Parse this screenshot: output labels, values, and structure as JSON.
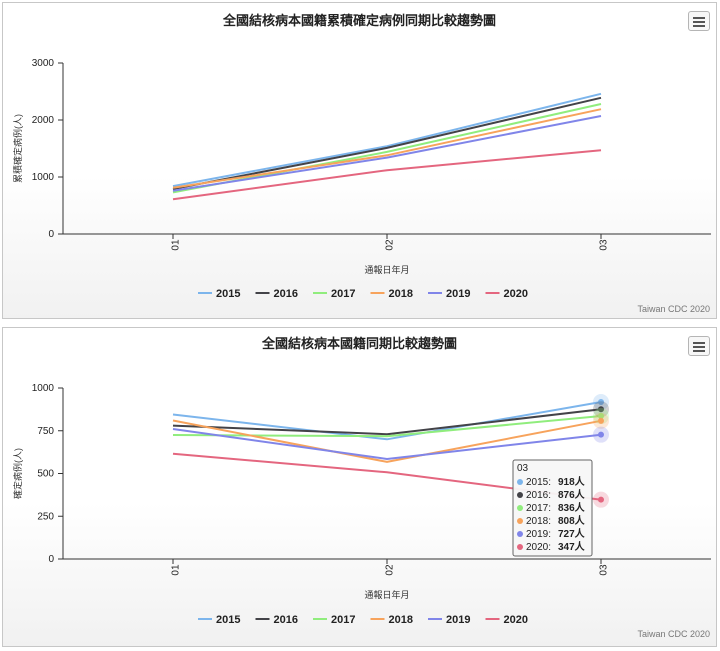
{
  "colors": {
    "2015": "#7cb5ec",
    "2016": "#434348",
    "2017": "#90ed7d",
    "2018": "#f7a35c",
    "2019": "#8085e9",
    "2020": "#e4667f"
  },
  "credit": "Taiwan CDC 2020",
  "chart_data": [
    {
      "type": "line",
      "title": "全國結核病本國籍累積確定病例同期比較趨勢圖",
      "xlabel": "通報日年月",
      "ylabel": "累積確定病例(人)",
      "categories": [
        "01",
        "02",
        "03"
      ],
      "ylim": [
        0,
        3000
      ],
      "yticks": [
        "0",
        "1000",
        "2000",
        "3000"
      ],
      "grid": false,
      "legend": "bottom-center",
      "series": [
        {
          "name": "2015",
          "values": [
            840,
            1540,
            2460
          ]
        },
        {
          "name": "2016",
          "values": [
            790,
            1510,
            2390
          ]
        },
        {
          "name": "2017",
          "values": [
            730,
            1440,
            2280
          ]
        },
        {
          "name": "2018",
          "values": [
            810,
            1380,
            2190
          ]
        },
        {
          "name": "2019",
          "values": [
            760,
            1340,
            2070
          ]
        },
        {
          "name": "2020",
          "values": [
            610,
            1120,
            1470
          ]
        }
      ]
    },
    {
      "type": "line",
      "title": "全國結核病本國籍同期比較趨勢圖",
      "xlabel": "通報日年月",
      "ylabel": "確定病例(人)",
      "categories": [
        "01",
        "02",
        "03"
      ],
      "ylim": [
        0,
        1000
      ],
      "yticks": [
        "0",
        "250",
        "500",
        "750",
        "1000"
      ],
      "grid": false,
      "legend": "bottom-center",
      "series": [
        {
          "name": "2015",
          "values": [
            845,
            700,
            918
          ]
        },
        {
          "name": "2016",
          "values": [
            780,
            730,
            876
          ]
        },
        {
          "name": "2017",
          "values": [
            725,
            718,
            836
          ]
        },
        {
          "name": "2018",
          "values": [
            810,
            568,
            808
          ]
        },
        {
          "name": "2019",
          "values": [
            760,
            585,
            727
          ]
        },
        {
          "name": "2020",
          "values": [
            615,
            507,
            347
          ]
        }
      ],
      "tooltip": {
        "header": "03",
        "rows": [
          {
            "label": "2015: ",
            "value": "918人"
          },
          {
            "label": "2016: ",
            "value": "876人"
          },
          {
            "label": "2017: ",
            "value": "836人"
          },
          {
            "label": "2018: ",
            "value": "808人"
          },
          {
            "label": "2019: ",
            "value": "727人"
          },
          {
            "label": "2020: ",
            "value": "347人"
          }
        ]
      }
    }
  ]
}
